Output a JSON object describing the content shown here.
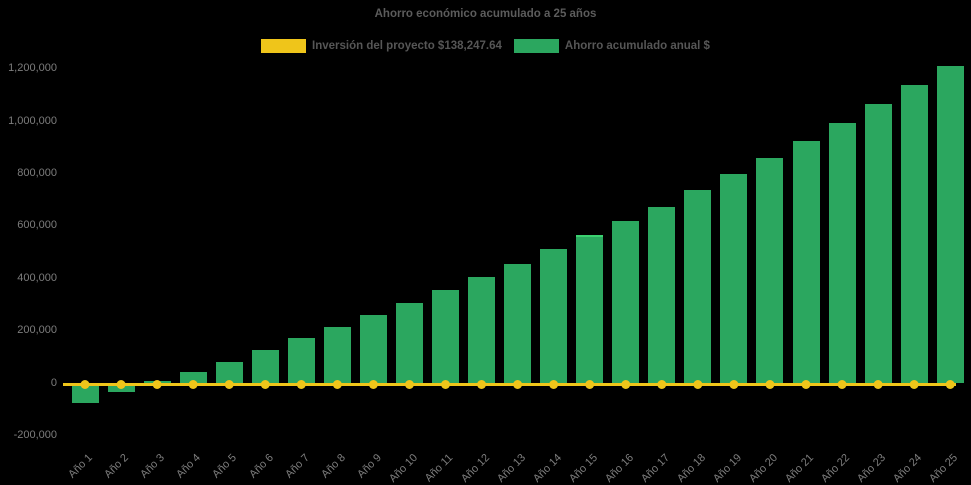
{
  "title": "Ahorro económico acumulado a 25 años",
  "legend": {
    "items": [
      {
        "label": "Inversión del proyecto $138,247.64",
        "color": "#EFC51A"
      },
      {
        "label": "Ahorro acumulado anual $",
        "color": "#2BA75F"
      }
    ]
  },
  "chart_data": {
    "type": "bar",
    "title": "Ahorro económico acumulado a 25 años",
    "categories": [
      "Año 1",
      "Año 2",
      "Año 3",
      "Año 4",
      "Año 5",
      "Año 6",
      "Año 7",
      "Año 8",
      "Año 9",
      "Año 10",
      "Año 11",
      "Año 12",
      "Año 13",
      "Año 14",
      "Año 15",
      "Año 16",
      "Año 17",
      "Año 18",
      "Año 19",
      "Año 20",
      "Año 21",
      "Año 22",
      "Año 23",
      "Año 24",
      "Año 25"
    ],
    "series": [
      {
        "name": "Inversión del proyecto $138,247.64",
        "type": "line",
        "color": "#EFC51A",
        "values": [
          0,
          0,
          0,
          0,
          0,
          0,
          0,
          0,
          0,
          0,
          0,
          0,
          0,
          0,
          0,
          0,
          0,
          0,
          0,
          0,
          0,
          0,
          0,
          0,
          0
        ]
      },
      {
        "name": "Ahorro acumulado anual $",
        "type": "bar",
        "color": "#2BA75F",
        "values": [
          -76000,
          -33000,
          7000,
          42000,
          80000,
          126000,
          170000,
          214000,
          260000,
          304000,
          355000,
          406000,
          453000,
          510000,
          565000,
          618000,
          672000,
          737000,
          798000,
          859000,
          924000,
          992000,
          1065000,
          1137000,
          1210000
        ]
      }
    ],
    "xlabel": "",
    "ylabel": "",
    "ylim": [
      -200000,
      1200000
    ],
    "ytick_interval": 200000,
    "yticks": [
      {
        "value": -200000,
        "label": "-200,000"
      },
      {
        "value": 0,
        "label": "0"
      },
      {
        "value": 200000,
        "label": "200,000"
      },
      {
        "value": 400000,
        "label": "400,000"
      },
      {
        "value": 600000,
        "label": "600,000"
      },
      {
        "value": 800000,
        "label": "800,000"
      },
      {
        "value": 1000000,
        "label": "1,000,000"
      },
      {
        "value": 1200000,
        "label": "1,200,000"
      }
    ],
    "grid": false,
    "legend_position": "top",
    "background": "#000000",
    "highlighted_bar_index": 14,
    "highlight_color": "#3BD170"
  }
}
